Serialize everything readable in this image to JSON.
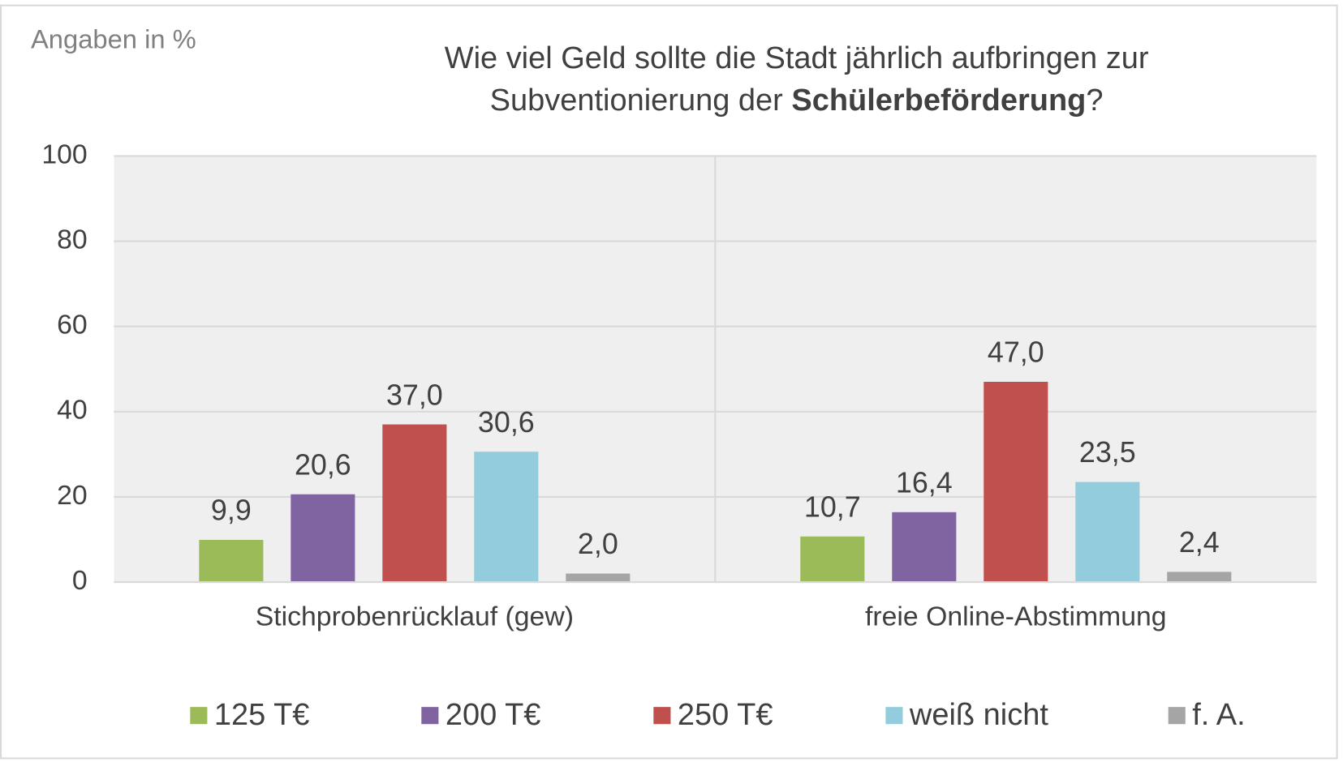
{
  "chart_data": {
    "type": "bar",
    "unit_label": "Angaben in %",
    "title": [
      "Wie viel Geld sollte die Stadt jährlich aufbringen zur",
      "Subventionierung der",
      "Schülerbeförderung",
      "?"
    ],
    "title_bold": [
      false,
      false,
      true,
      false
    ],
    "categories": [
      "Stichprobenrücklauf (gew)",
      "freie Online-Abstimmung"
    ],
    "series": [
      {
        "name": "125 T€",
        "color": "#9bbb59",
        "values": [
          9.9,
          10.7
        ],
        "value_labels": [
          "9,9",
          "10,7"
        ]
      },
      {
        "name": "200 T€",
        "color": "#8064a2",
        "values": [
          20.6,
          16.4
        ],
        "value_labels": [
          "20,6",
          "16,4"
        ]
      },
      {
        "name": "250 T€",
        "color": "#c0504d",
        "values": [
          37.0,
          47.0
        ],
        "value_labels": [
          "37,0",
          "47,0"
        ]
      },
      {
        "name": "weiß nicht",
        "color": "#93cddd",
        "values": [
          30.6,
          23.5
        ],
        "value_labels": [
          "30,6",
          "23,5"
        ]
      },
      {
        "name": "f. A.",
        "color": "#a5a5a5",
        "values": [
          2.0,
          2.4
        ],
        "value_labels": [
          "2,0",
          "2,4"
        ]
      }
    ],
    "ylim": [
      0,
      100
    ],
    "yticks": [
      0,
      20,
      40,
      60,
      80,
      100
    ],
    "grid": true,
    "legend": "bottom"
  }
}
